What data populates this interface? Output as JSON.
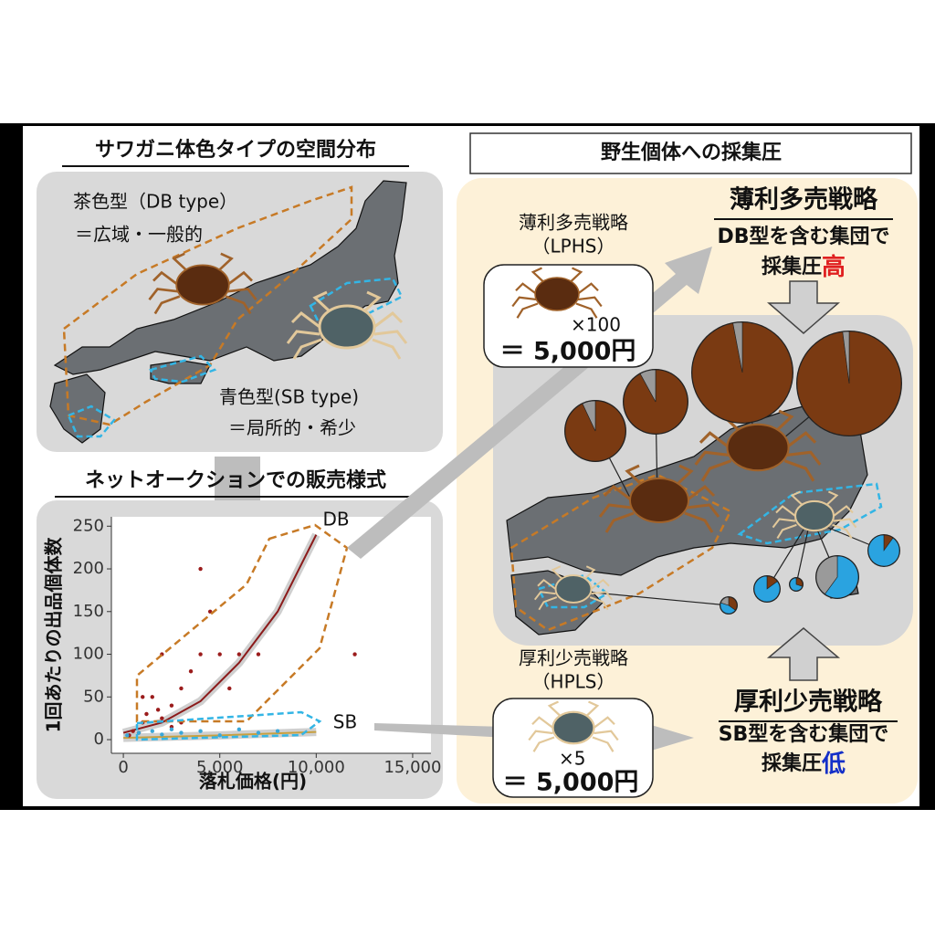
{
  "left": {
    "title": "サワガニ体色タイプの空間分布",
    "db_label": "茶色型（DB type）",
    "db_desc": "＝広域・一般的",
    "sb_label": "青色型(SB type)",
    "sb_desc": "＝局所的・希少",
    "auction_title": "ネットオークションでの販売様式"
  },
  "chart_data": [
    {
      "type": "scatter",
      "y_label": "1回あたりの出品個体数",
      "x_label": "落札価格(円)",
      "xlim": [
        -620,
        15950
      ],
      "ylim": [
        -16,
        261
      ],
      "xticks": [
        0,
        {
          "value": 5000,
          "label": "5,000"
        },
        {
          "value": 10000,
          "label": "10,000"
        },
        {
          "value": 15000,
          "label": "15,000"
        }
      ],
      "yticks": [
        0,
        50,
        100,
        150,
        200,
        250
      ],
      "series": [
        {
          "name": "DB",
          "color": "#9b1c1c",
          "x": [
            300,
            500,
            800,
            1000,
            1000,
            1200,
            1500,
            1800,
            2000,
            2000,
            2500,
            2500,
            3000,
            3000,
            3500,
            4000,
            4000,
            4500,
            5000,
            5500,
            6000,
            7000,
            12000
          ],
          "values": [
            5,
            10,
            8,
            20,
            50,
            30,
            50,
            35,
            25,
            100,
            40,
            15,
            60,
            20,
            80,
            100,
            200,
            150,
            100,
            60,
            100,
            100,
            100
          ]
        },
        {
          "name": "SB",
          "color": "#3aa7d8",
          "x": [
            200,
            800,
            1500,
            2000,
            2500,
            3000,
            4000,
            5000,
            6000,
            7000,
            8000
          ],
          "values": [
            5,
            8,
            10,
            6,
            12,
            8,
            10,
            5,
            12,
            8,
            10
          ]
        }
      ],
      "trend": [
        {
          "color": "#8b1a1a",
          "x": [
            0,
            2000,
            4000,
            6000,
            8000,
            10000
          ],
          "values": [
            8,
            20,
            45,
            90,
            150,
            240
          ]
        },
        {
          "color": "#c8a040",
          "x": [
            0,
            5000,
            10000
          ],
          "values": [
            2,
            5,
            9
          ]
        }
      ]
    },
    {
      "type": "pie",
      "pies": [
        {
          "values": [
            93,
            7
          ],
          "colors": [
            "#7a3a12",
            "#9a9a9a"
          ]
        },
        {
          "values": [
            92,
            8
          ],
          "colors": [
            "#7a3a12",
            "#9a9a9a"
          ]
        },
        {
          "values": [
            97,
            3
          ],
          "colors": [
            "#7a3a12",
            "#9a9a9a"
          ]
        },
        {
          "values": [
            98,
            2
          ],
          "colors": [
            "#7a3a12",
            "#9a9a9a"
          ]
        },
        {
          "values": [
            10,
            90
          ],
          "colors": [
            "#7a3a12",
            "#2aa3e0"
          ]
        },
        {
          "values": [
            60,
            40
          ],
          "colors": [
            "#2aa3e0",
            "#9a9a9a"
          ]
        },
        {
          "values": [
            15,
            85
          ],
          "colors": [
            "#7a3a12",
            "#2aa3e0"
          ]
        },
        {
          "values": [
            30,
            70
          ],
          "colors": [
            "#7a3a12",
            "#2aa3e0"
          ]
        },
        {
          "values": [
            35,
            45,
            20
          ],
          "colors": [
            "#7a3a12",
            "#2aa3e0",
            "#9a9a9a"
          ]
        }
      ]
    }
  ],
  "right": {
    "title": "野生個体への採集圧",
    "lphs_name": "薄利多売戦略",
    "lphs_abbr": "（LPHS）",
    "lphs_count": "×100",
    "lphs_price": "＝ 5,000円",
    "lphs_head": "薄利多売戦略",
    "lphs_line1": "DB型を含む集団で",
    "lphs_line2": "採集圧",
    "lphs_level": "高",
    "hpls_name": "厚利少売戦略",
    "hpls_abbr": "（HPLS）",
    "hpls_count": "×5",
    "hpls_price": "＝ 5,000円",
    "hpls_head": "厚利少売戦略",
    "hpls_line1": "SB型を含む集団で",
    "hpls_line2": "採集圧",
    "hpls_level": "低",
    "db_tag": "DB",
    "sb_tag": "SB"
  }
}
